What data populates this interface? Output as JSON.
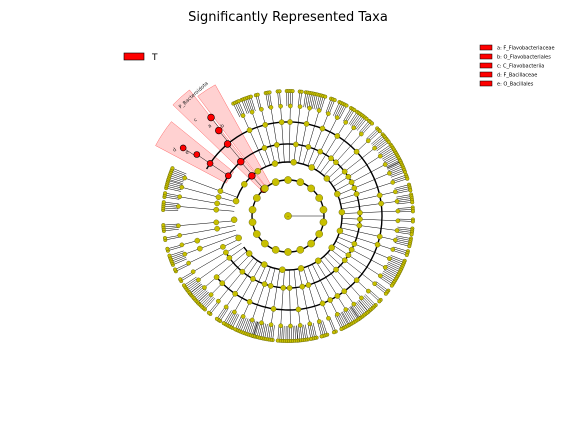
{
  "title": "Significantly Represented Taxa",
  "group_legend": {
    "label": "T",
    "color": "#ff0000"
  },
  "biomarker_legend": [
    {
      "key": "a",
      "text": "a: F_Flavobacteriaceae"
    },
    {
      "key": "b",
      "text": "b: O_Flavobacteriales"
    },
    {
      "key": "c",
      "text": "c: C_Flavobacteriia"
    },
    {
      "key": "d",
      "text": "d: F_Bacillaceae"
    },
    {
      "key": "e",
      "text": "e: O_Bacillales"
    }
  ],
  "clade_labels": [
    {
      "text": "P_Bacteroidota"
    },
    {
      "text": "a"
    },
    {
      "text": "b"
    },
    {
      "text": "c"
    },
    {
      "text": "d"
    },
    {
      "text": "e"
    }
  ],
  "colors": {
    "enriched": "#ff0000",
    "non_significant": "#c8c000",
    "highlight": "#ff9999"
  },
  "center_label": ".",
  "tree": {
    "levels": 6,
    "non_significant_leaf_groups": 70,
    "highlighted_clades": 2
  }
}
